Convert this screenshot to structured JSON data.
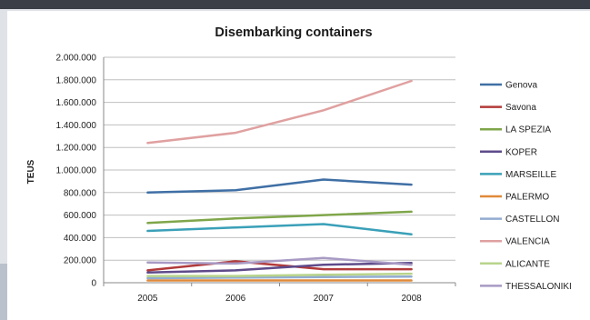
{
  "chart_data": {
    "type": "line",
    "title": "Disembarking containers",
    "xlabel": "",
    "ylabel": "TEUS",
    "categories": [
      "2005",
      "2006",
      "2007",
      "2008"
    ],
    "ylim": [
      0,
      2000000
    ],
    "yticks": [
      0,
      200000,
      400000,
      600000,
      800000,
      1000000,
      1200000,
      1400000,
      1600000,
      1800000,
      2000000
    ],
    "ytick_labels": [
      "0",
      "200.000",
      "400.000",
      "600.000",
      "800.000",
      "1.000.000",
      "1.200.000",
      "1.400.000",
      "1.600.000",
      "1.800.000",
      "2.000.000"
    ],
    "grid": "horizontal",
    "legend_position": "right",
    "series": [
      {
        "name": "Genova",
        "color": "#3f6fa5",
        "values": [
          800000,
          820000,
          915000,
          870000
        ]
      },
      {
        "name": "Savona",
        "color": "#b23a3a",
        "values": [
          110000,
          190000,
          120000,
          120000
        ]
      },
      {
        "name": "LA SPEZIA",
        "color": "#7fa64a",
        "values": [
          530000,
          570000,
          600000,
          630000
        ]
      },
      {
        "name": "KOPER",
        "color": "#5e4b8a",
        "values": [
          90000,
          110000,
          160000,
          175000
        ]
      },
      {
        "name": "MARSEILLE",
        "color": "#3aa0b8",
        "values": [
          460000,
          490000,
          520000,
          430000
        ]
      },
      {
        "name": "PALERMO",
        "color": "#e08a3a",
        "values": [
          20000,
          20000,
          20000,
          20000
        ]
      },
      {
        "name": "CASTELLON",
        "color": "#92acd0",
        "values": [
          40000,
          45000,
          50000,
          55000
        ]
      },
      {
        "name": "VALENCIA",
        "color": "#e0a0a0",
        "values": [
          1240000,
          1330000,
          1530000,
          1790000
        ]
      },
      {
        "name": "ALICANTE",
        "color": "#b8d48c",
        "values": [
          60000,
          60000,
          70000,
          80000
        ]
      },
      {
        "name": "THESSALONIKI",
        "color": "#a89ac4",
        "values": [
          180000,
          170000,
          220000,
          160000
        ]
      }
    ]
  }
}
